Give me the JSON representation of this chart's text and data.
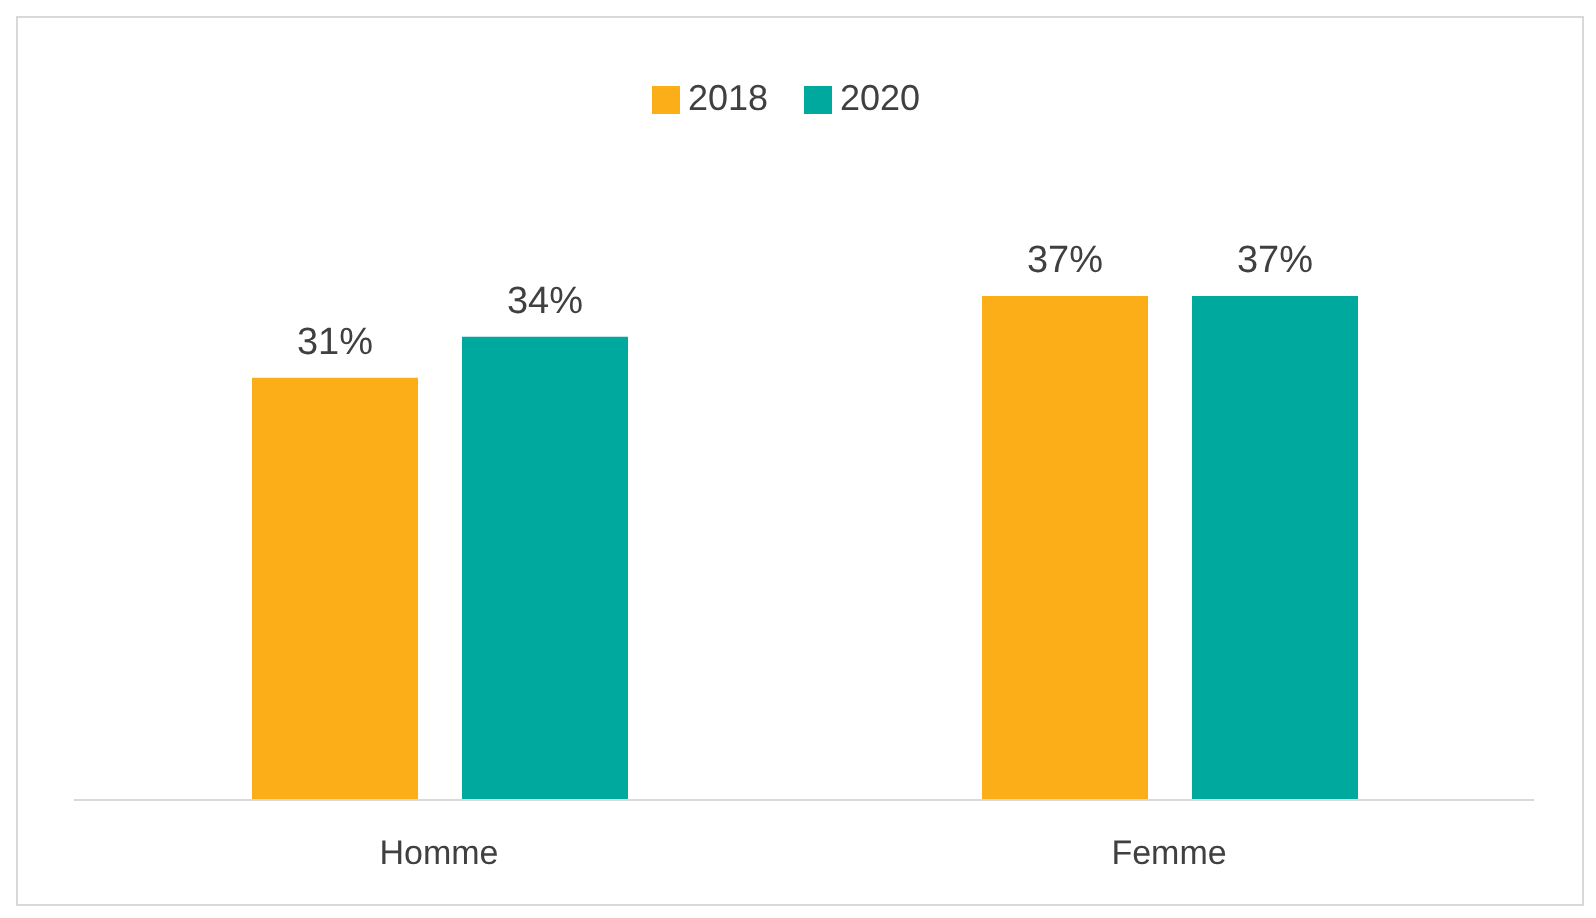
{
  "chart_data": {
    "type": "bar",
    "categories": [
      "Homme",
      "Femme"
    ],
    "series": [
      {
        "name": "2018",
        "color": "#fbae17",
        "values": [
          31,
          37
        ],
        "value_labels": [
          "31%",
          "37%"
        ]
      },
      {
        "name": "2020",
        "color": "#00a99d",
        "values": [
          34,
          37
        ],
        "value_labels": [
          "34%",
          "37%"
        ]
      }
    ],
    "legend": "top",
    "grid": false
  }
}
